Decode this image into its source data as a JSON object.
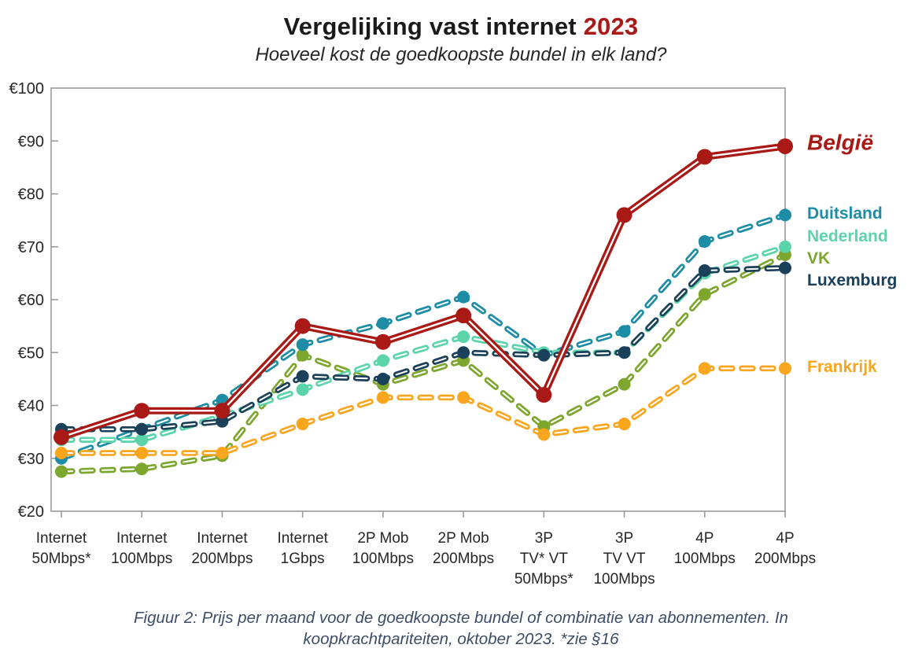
{
  "title": {
    "main": "Vergelijking vast internet ",
    "year": "2023",
    "subtitle": "Hoeveel kost de goedkoopste bundel in elk land?"
  },
  "caption": "Figuur 2: Prijs per maand voor de goedkoopste bundel of combinatie van abonnementen. In koopkrachtpariteiten, oktober 2023. *zie §16",
  "colors": {
    "belgie_red": "#A91916",
    "duitsland_teal": "#1D8CA5",
    "nederland_mint": "#5BD4AA",
    "vk_olive": "#7DA62F",
    "luxemburg_navy": "#1B4059",
    "frankrijk_orange": "#F9A51E",
    "axis_gray": "#9A9A9A",
    "caption_slate": "#3D4D68"
  },
  "chart_data": {
    "type": "line",
    "title": "Vergelijking vast internet 2023",
    "subtitle": "Hoeveel kost de goedkoopste bundel in elk land?",
    "currency_prefix": "€",
    "ylim": [
      20,
      100
    ],
    "yticks": [
      20,
      30,
      40,
      50,
      60,
      70,
      80,
      90,
      100
    ],
    "grid": false,
    "legend_position": "right-of-last-point",
    "categories": [
      [
        "Internet",
        "50Mbps*"
      ],
      [
        "Internet",
        "100Mbps"
      ],
      [
        "Internet",
        "200Mbps"
      ],
      [
        "Internet",
        "1Gbps"
      ],
      [
        "2P Mob",
        "100Mbps"
      ],
      [
        "2P Mob",
        "200Mbps"
      ],
      [
        "3P",
        "TV* VT",
        "50Mbps*"
      ],
      [
        "3P",
        "TV VT",
        "100Mbps"
      ],
      [
        "4P",
        "100Mbps"
      ],
      [
        "4P",
        "200Mbps"
      ]
    ],
    "series": [
      {
        "name": "België",
        "color": "#A91916",
        "line_style": "solid",
        "label_value": 89.5,
        "values": [
          34,
          39,
          39,
          55,
          52,
          57,
          42,
          76,
          87,
          89
        ]
      },
      {
        "name": "Duitsland",
        "color": "#1D8CA5",
        "line_style": "dashed",
        "label_value": 76,
        "values": [
          30,
          35.5,
          41,
          51.5,
          55.5,
          60.5,
          49.5,
          54,
          71,
          76
        ]
      },
      {
        "name": "Nederland",
        "color": "#5BD4AA",
        "line_style": "dashed",
        "label_value": 71.8,
        "values": [
          33.5,
          33.5,
          38,
          43,
          48.5,
          53,
          50,
          50,
          65,
          70
        ]
      },
      {
        "name": "VK",
        "color": "#7DA62F",
        "line_style": "dashed",
        "label_value": 67.6,
        "values": [
          27.5,
          28,
          30.5,
          49.5,
          44,
          48.5,
          36,
          44,
          61,
          68.5
        ]
      },
      {
        "name": "Luxemburg",
        "color": "#1B4059",
        "line_style": "dashed",
        "label_value": 63.4,
        "values": [
          35.5,
          35.5,
          37,
          45.5,
          45,
          50,
          49.5,
          50,
          65.5,
          66
        ]
      },
      {
        "name": "Frankrijk",
        "color": "#F9A51E",
        "line_style": "dashed",
        "label_value": 47,
        "values": [
          31,
          31,
          31,
          36.5,
          41.5,
          41.5,
          34.5,
          36.5,
          47,
          47
        ]
      }
    ],
    "draw_order": [
      3,
      1,
      2,
      4,
      5,
      0
    ]
  }
}
